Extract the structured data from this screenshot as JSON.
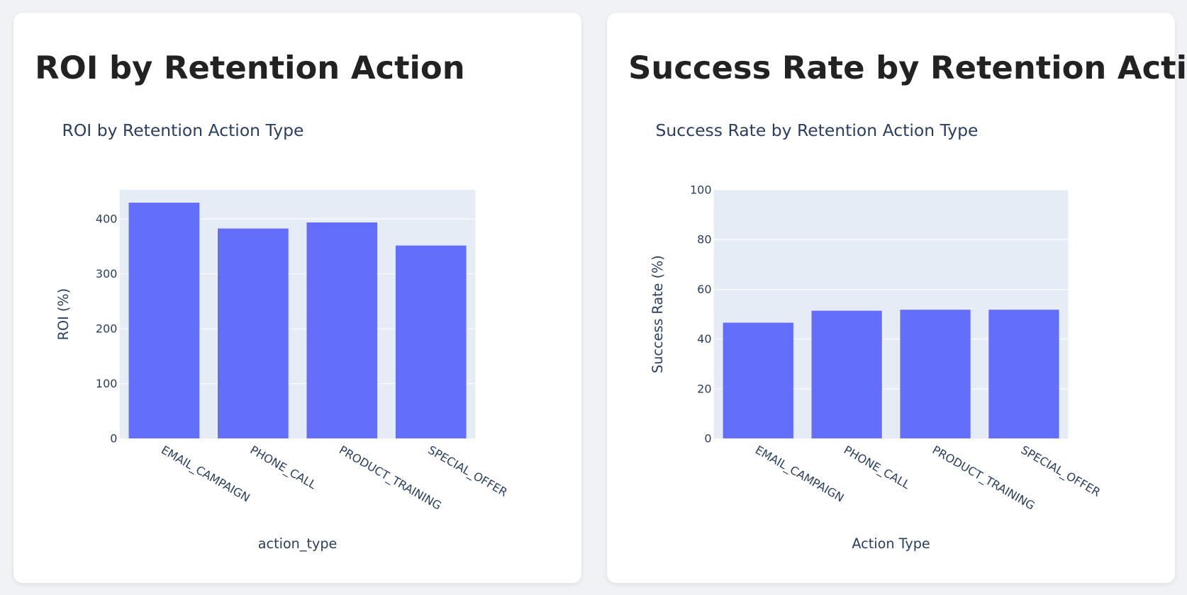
{
  "cards": [
    {
      "heading": "ROI by Retention Action"
    },
    {
      "heading": "Success Rate by Retention Action"
    }
  ],
  "colors": {
    "bar": "#636efa",
    "plot_bg": "#e5ecf6",
    "text": "#2a3f5f"
  },
  "chart_data": [
    {
      "type": "bar",
      "title": "ROI by Retention Action Type",
      "xlabel": "action_type",
      "ylabel": "ROI (%)",
      "categories": [
        "EMAIL_CAMPAIGN",
        "PHONE_CALL",
        "PRODUCT_TRAINING",
        "SPECIAL_OFFER"
      ],
      "values": [
        430,
        383,
        394,
        352
      ],
      "ylim": [
        0,
        453
      ],
      "yticks": [
        0,
        100,
        200,
        300,
        400
      ],
      "grid": true
    },
    {
      "type": "bar",
      "title": "Success Rate by Retention Action Type",
      "xlabel": "Action Type",
      "ylabel": "Success Rate (%)",
      "categories": [
        "EMAIL_CAMPAIGN",
        "PHONE_CALL",
        "PRODUCT_TRAINING",
        "SPECIAL_OFFER"
      ],
      "values": [
        46.7,
        51.5,
        51.9,
        51.9
      ],
      "ylim": [
        0,
        100
      ],
      "yticks": [
        0,
        20,
        40,
        60,
        80,
        100
      ],
      "grid": true
    }
  ]
}
